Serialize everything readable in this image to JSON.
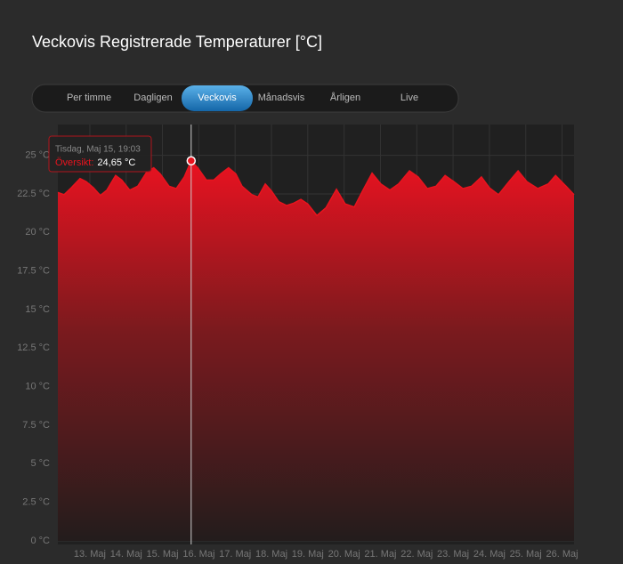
{
  "tabs": {
    "items": [
      "Per timme",
      "Dagligen",
      "Veckovis",
      "Månadsvis",
      "Årligen",
      "Live"
    ],
    "active": 2
  },
  "chart_data": {
    "type": "area",
    "title": "Veckovis Registrerade Temperaturer [°C]",
    "x": [
      12.12,
      12.29,
      12.49,
      12.73,
      12.9,
      13.1,
      13.29,
      13.47,
      13.71,
      13.88,
      14.1,
      14.32,
      14.56,
      14.76,
      14.94,
      15.18,
      15.38,
      15.6,
      15.79,
      15.97,
      16.21,
      16.41,
      16.6,
      16.82,
      17.02,
      17.19,
      17.46,
      17.63,
      17.83,
      18.0,
      18.2,
      18.42,
      18.61,
      18.81,
      19.0,
      19.25,
      19.5,
      19.79,
      20.03,
      20.28,
      20.52,
      20.77,
      21.01,
      21.26,
      21.5,
      21.8,
      22.04,
      22.29,
      22.53,
      22.78,
      23.02,
      23.27,
      23.51,
      23.78,
      24.0,
      24.25,
      24.54,
      24.79,
      25.03,
      25.33,
      25.62,
      25.82,
      26.11,
      26.33
    ],
    "values": [
      22.6,
      22.45,
      22.9,
      23.5,
      23.3,
      22.9,
      22.4,
      22.75,
      23.7,
      23.4,
      22.75,
      23.0,
      23.9,
      24.2,
      23.8,
      23.0,
      22.85,
      23.6,
      24.65,
      24.2,
      23.4,
      23.4,
      23.8,
      24.2,
      23.8,
      23.0,
      22.45,
      22.3,
      23.15,
      22.7,
      22.0,
      21.75,
      21.9,
      22.15,
      21.85,
      21.1,
      21.6,
      22.8,
      21.85,
      21.65,
      22.75,
      23.85,
      23.15,
      22.75,
      23.15,
      24.0,
      23.6,
      22.85,
      23.0,
      23.7,
      23.3,
      22.85,
      23.0,
      23.6,
      22.9,
      22.45,
      23.3,
      24.0,
      23.3,
      22.85,
      23.15,
      23.7,
      23.0,
      22.45
    ],
    "color": "#e8141e",
    "xlim": [
      12.12,
      26.33
    ],
    "xticks": [
      {
        "value": 13,
        "label": "13. Maj"
      },
      {
        "value": 14,
        "label": "14. Maj"
      },
      {
        "value": 15,
        "label": "15. Maj"
      },
      {
        "value": 16,
        "label": "16. Maj"
      },
      {
        "value": 17,
        "label": "17. Maj"
      },
      {
        "value": 18,
        "label": "18. Maj"
      },
      {
        "value": 19,
        "label": "19. Maj"
      },
      {
        "value": 20,
        "label": "20. Maj"
      },
      {
        "value": 21,
        "label": "21. Maj"
      },
      {
        "value": 22,
        "label": "22. Maj"
      },
      {
        "value": 23,
        "label": "23. Maj"
      },
      {
        "value": 24,
        "label": "24. Maj"
      },
      {
        "value": 25,
        "label": "25. Maj"
      },
      {
        "value": 26,
        "label": "26. Maj"
      }
    ],
    "ylim": [
      0,
      27
    ],
    "yticks": [
      {
        "value": 0,
        "label": "0 °C"
      },
      {
        "value": 2.5,
        "label": "2.5 °C"
      },
      {
        "value": 5,
        "label": "5 °C"
      },
      {
        "value": 7.5,
        "label": "7.5 °C"
      },
      {
        "value": 10,
        "label": "10 °C"
      },
      {
        "value": 12.5,
        "label": "12.5 °C"
      },
      {
        "value": 15,
        "label": "15 °C"
      },
      {
        "value": 17.5,
        "label": "17.5 °C"
      },
      {
        "value": 20,
        "label": "20 °C"
      },
      {
        "value": 22.5,
        "label": "22.5 °C"
      },
      {
        "value": 25,
        "label": "25 °C"
      }
    ],
    "grid": true,
    "hover_index": 18,
    "tooltip": {
      "header": "Tisdag, Maj 15, 19:03",
      "series_label": "Översikt:",
      "value_label": "24,65 °C"
    }
  }
}
